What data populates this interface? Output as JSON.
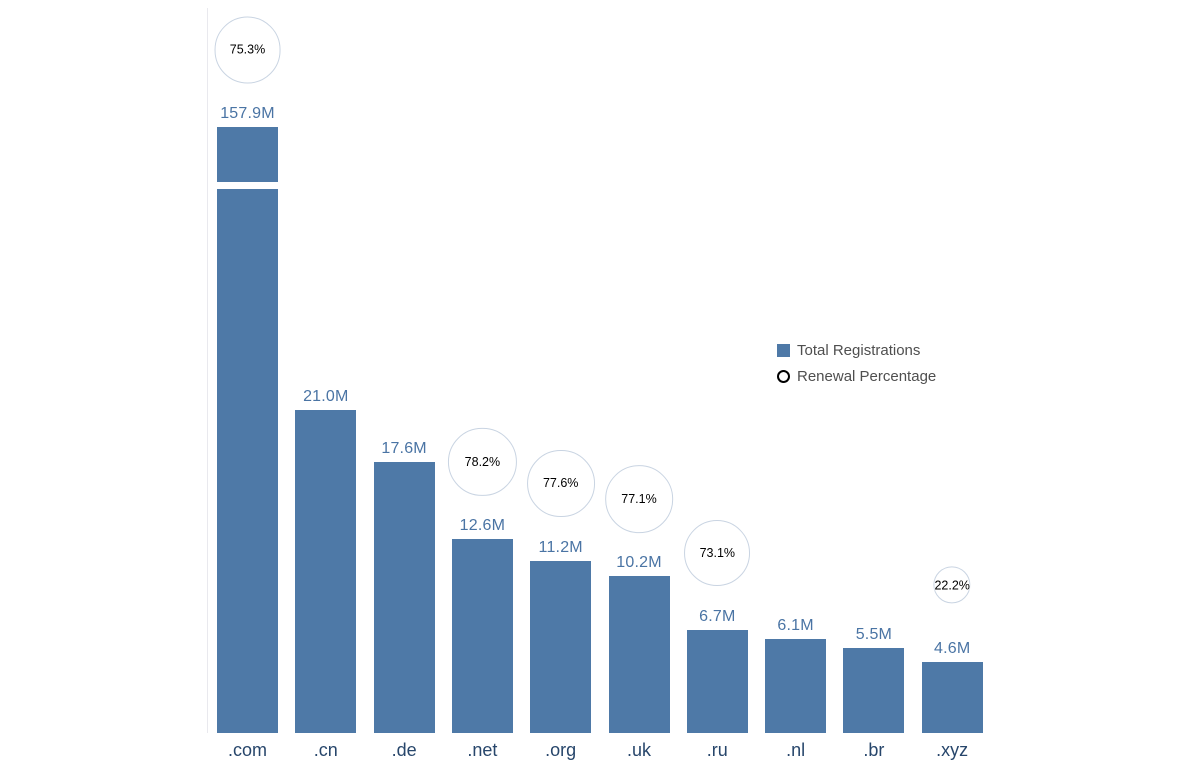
{
  "legend": {
    "items": [
      {
        "label": "Total Registrations",
        "swatch": "square"
      },
      {
        "label": "Renewal Percentage",
        "swatch": "ring"
      }
    ]
  },
  "chart_data": {
    "type": "bar",
    "title": "",
    "xlabel": "",
    "ylabel": "",
    "categories": [
      ".com",
      ".cn",
      ".de",
      ".net",
      ".org",
      ".uk",
      ".ru",
      ".nl",
      ".br",
      ".xyz"
    ],
    "series": [
      {
        "name": "Total Registrations",
        "unit": "M",
        "values": [
          157.9,
          21.0,
          17.6,
          12.6,
          11.2,
          10.2,
          6.7,
          6.1,
          5.5,
          4.6
        ],
        "labels": [
          "157.9M",
          "21.0M",
          "17.6M",
          "12.6M",
          "11.2M",
          "10.2M",
          "6.7M",
          "6.1M",
          "5.5M",
          "4.6M"
        ]
      },
      {
        "name": "Renewal Percentage",
        "unit": "%",
        "values": [
          75.3,
          null,
          null,
          78.2,
          77.6,
          77.1,
          73.1,
          null,
          null,
          22.2
        ],
        "labels": [
          "75.3%",
          null,
          null,
          "78.2%",
          "77.6%",
          "77.1%",
          "73.1%",
          null,
          null,
          "22.2%"
        ]
      }
    ],
    "colors": {
      "bar": "#4e79a7",
      "bar_label": "#4a74a4",
      "axis_label": "#27466b",
      "circle_stroke": "#c9d4e2",
      "circle_text": "#000000",
      "legend_text": "#4f4f4f"
    },
    "axis_break": {
      "category": ".com",
      "note": "tallest bar shown truncated with a gap"
    },
    "legend_position": "right-middle",
    "grid": false,
    "circle_size_encoding": "area proportional to renewal percentage"
  }
}
